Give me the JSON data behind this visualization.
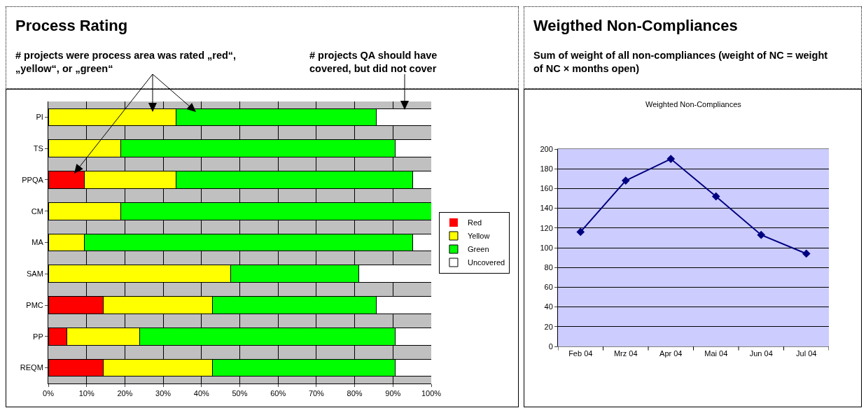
{
  "chart_data": [
    {
      "type": "bar",
      "orientation": "horizontal",
      "stacked": true,
      "title": "Process Rating",
      "annotations": [
        "# projects were process area was rated „red“, „yellow“, or „green“",
        "# projects QA should have covered, but did not cover"
      ],
      "categories": [
        "PI",
        "TS",
        "PPQA",
        "CM",
        "MA",
        "SAM",
        "PMC",
        "PP",
        "REQM"
      ],
      "series": [
        {
          "name": "Red",
          "color": "#ff0000",
          "values": [
            0,
            0,
            9.5,
            0,
            0,
            0,
            14.3,
            4.8,
            14.3
          ]
        },
        {
          "name": "Yellow",
          "color": "#ffff00",
          "values": [
            33.3,
            19,
            23.8,
            19,
            9.5,
            47.6,
            28.6,
            19,
            28.6
          ]
        },
        {
          "name": "Green",
          "color": "#00ff00",
          "values": [
            52.4,
            71.5,
            61.9,
            81,
            85.7,
            33.4,
            42.8,
            66.7,
            47.6
          ]
        },
        {
          "name": "Uncovered",
          "color": "#ffffff",
          "values": [
            14.3,
            9.5,
            4.8,
            0,
            4.8,
            19,
            14.3,
            9.5,
            9.5
          ]
        }
      ],
      "xlim": [
        0,
        100
      ],
      "xticks": [
        {
          "value": 0,
          "label": "0%"
        },
        {
          "value": 10,
          "label": "10%"
        },
        {
          "value": 20,
          "label": "20%"
        },
        {
          "value": 30,
          "label": "30%"
        },
        {
          "value": 40,
          "label": "40%"
        },
        {
          "value": 50,
          "label": "50%"
        },
        {
          "value": 60,
          "label": "60%"
        },
        {
          "value": 70,
          "label": "70%"
        },
        {
          "value": 80,
          "label": "80%"
        },
        {
          "value": 90,
          "label": "90%"
        },
        {
          "value": 100,
          "label": "100%"
        }
      ],
      "grid": "x",
      "legend": "right"
    },
    {
      "type": "line",
      "title": "Weigthed Non-Compliances",
      "subtitle": "Sum of weight of all non-compliances (weight of NC = weight of NC × months open)",
      "annotations": [
        "Weighted Non-Compliances"
      ],
      "categories": [
        "Feb 04",
        "Mrz 04",
        "Apr 04",
        "Mai 04",
        "Jun 04",
        "Jul 04"
      ],
      "series": [
        {
          "color": "#000080",
          "values": [
            116,
            168,
            190,
            152,
            113,
            94
          ]
        }
      ],
      "ylim": [
        0,
        200
      ],
      "yticks": [
        0,
        20,
        40,
        60,
        80,
        100,
        120,
        140,
        160,
        180,
        200
      ],
      "grid": "y",
      "marker": "diamond",
      "line_style": "solid",
      "legend": false
    }
  ]
}
